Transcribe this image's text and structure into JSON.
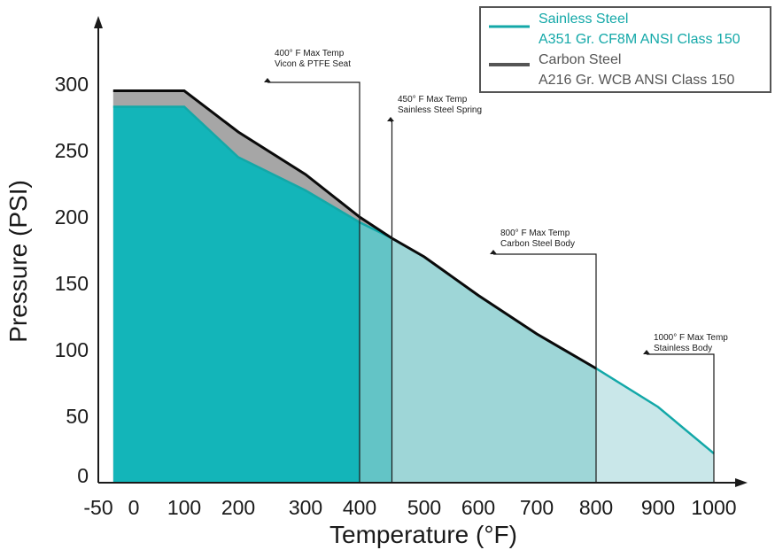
{
  "chart_data": {
    "type": "area",
    "title": "",
    "xlabel": "Temperature (°F)",
    "ylabel": "Pressure (PSI)",
    "xlim": [
      -50,
      1000
    ],
    "ylim": [
      0,
      300
    ],
    "x_ticks": [
      "-50",
      "0",
      "100",
      "200",
      "300",
      "400",
      "500",
      "600",
      "700",
      "800",
      "900",
      "1000"
    ],
    "x_tick_values": [
      -50,
      0,
      100,
      200,
      300,
      400,
      500,
      600,
      700,
      800,
      900,
      1000
    ],
    "y_ticks": [
      "0",
      "50",
      "100",
      "150",
      "200",
      "250",
      "300"
    ],
    "y_tick_values": [
      0,
      50,
      100,
      150,
      200,
      250,
      300
    ],
    "grid": false,
    "legend_position": "top-right",
    "series": [
      {
        "name": "Sainless Steel",
        "description": "A351 Gr. CF8M ANSI Class 150",
        "color": "#13a8a8",
        "x": [
          -29,
          100,
          200,
          300,
          400,
          450,
          500,
          600,
          700,
          800,
          900,
          1000
        ],
        "y": [
          283,
          283,
          245,
          220,
          196,
          184,
          170,
          141,
          112,
          86,
          57,
          22
        ]
      },
      {
        "name": "Carbon Steel",
        "description": "A216 Gr. WCB ANSI Class 150",
        "color": "#555555",
        "x": [
          -29,
          100,
          200,
          300,
          400,
          450,
          500,
          600,
          700,
          800
        ],
        "y": [
          295,
          295,
          264,
          232,
          200,
          184,
          170,
          141,
          112,
          86
        ]
      }
    ],
    "temp_zones": [
      {
        "from": -29,
        "to": 400,
        "color": "#13b5b9"
      },
      {
        "from": 400,
        "to": 450,
        "color": "#63c4c6"
      },
      {
        "from": 450,
        "to": 800,
        "color": "#9ed6d7"
      },
      {
        "from": 800,
        "to": 1000,
        "color": "#c9e7e9"
      }
    ],
    "annotations": [
      {
        "x": 400,
        "lines": [
          "400° F Max Temp",
          "Vicon & PTFE Seat"
        ]
      },
      {
        "x": 450,
        "lines": [
          "450° F Max Temp",
          "Sainless Steel Spring"
        ]
      },
      {
        "x": 800,
        "lines": [
          "800° F Max Temp",
          "Carbon Steel Body"
        ]
      },
      {
        "x": 1000,
        "lines": [
          "1000° F Max Temp",
          "Stainless Body"
        ]
      }
    ]
  }
}
